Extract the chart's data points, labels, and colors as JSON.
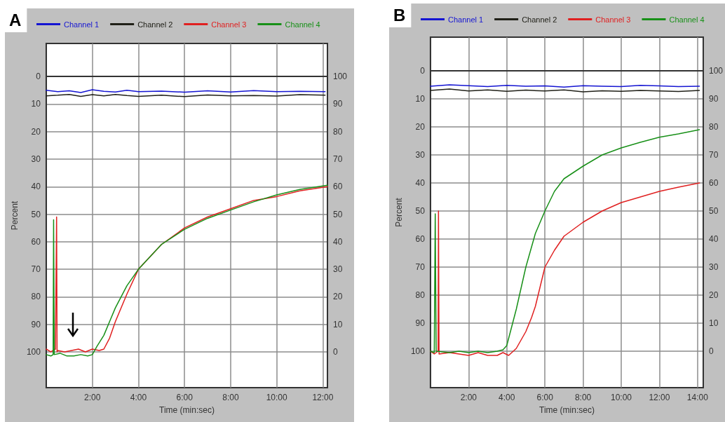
{
  "chart_data": [
    {
      "type": "line",
      "title": "A",
      "xlabel": "Time (min:sec)",
      "ylabel": "Percent",
      "legend": "top",
      "grid": true,
      "marker": "none",
      "line_style": "solid",
      "xlim": [
        0,
        12.2
      ],
      "xticks": [
        {
          "value": 2,
          "label": "2:00"
        },
        {
          "value": 4,
          "label": "4:00"
        },
        {
          "value": 6,
          "label": "6:00"
        },
        {
          "value": 8,
          "label": "8:00"
        },
        {
          "value": 10,
          "label": "10:00"
        },
        {
          "value": 12,
          "label": "12:00"
        }
      ],
      "ylim": [
        113,
        -12
      ],
      "yticks": [
        0,
        10,
        20,
        30,
        40,
        50,
        60,
        70,
        80,
        90,
        100
      ],
      "y2lim": [
        -13,
        112
      ],
      "y2ticks": [
        0,
        10,
        20,
        30,
        40,
        50,
        60,
        70,
        80,
        90,
        100
      ],
      "series": [
        {
          "name": "Channel 1",
          "color": "#1414d2",
          "x": [
            0,
            0.5,
            1,
            1.5,
            2,
            2.5,
            3,
            3.5,
            4,
            5,
            6,
            7,
            8,
            9,
            10,
            11,
            12.1
          ],
          "values": [
            5,
            5.5,
            5.2,
            5.8,
            4.8,
            5.4,
            5.6,
            5,
            5.5,
            5.3,
            5.7,
            5.2,
            5.6,
            5.1,
            5.5,
            5.4,
            5.5
          ]
        },
        {
          "name": "Channel 2",
          "color": "#202018",
          "x": [
            0,
            0.5,
            1,
            1.5,
            2,
            2.5,
            3,
            3.5,
            4,
            5,
            6,
            7,
            8,
            9,
            10,
            11,
            12.1
          ],
          "values": [
            7,
            6.8,
            6.5,
            7.2,
            6.6,
            7,
            6.5,
            6.9,
            7.2,
            6.8,
            7.3,
            6.7,
            7,
            6.9,
            7.1,
            6.6,
            6.8
          ]
        },
        {
          "name": "Channel 3",
          "color": "#e02020",
          "x": [
            0,
            0.2,
            0.4,
            0.45,
            0.47,
            0.5,
            0.8,
            1.1,
            1.4,
            1.7,
            2,
            2.3,
            2.5,
            2.75,
            3,
            3.5,
            4,
            5,
            6,
            7,
            8,
            9,
            10,
            11,
            12.2
          ],
          "values": [
            99,
            100,
            99,
            51,
            100,
            99.5,
            100,
            99.5,
            99,
            100,
            99,
            99.5,
            99,
            95,
            89,
            79,
            70,
            61,
            55,
            51,
            48,
            45,
            43.6,
            41.5,
            40
          ]
        },
        {
          "name": "Channel 4",
          "color": "#189018",
          "x": [
            0,
            0.2,
            0.3,
            0.32,
            0.35,
            0.6,
            0.9,
            1.2,
            1.5,
            1.8,
            2,
            2.2,
            2.5,
            2.8,
            3,
            3.5,
            4,
            5,
            6,
            7,
            8,
            9,
            10,
            11,
            12.2
          ],
          "values": [
            101,
            101.5,
            101,
            52,
            101,
            100.5,
            101.5,
            101.5,
            101,
            101.5,
            101,
            98,
            94,
            88,
            84,
            76,
            70,
            61,
            55.5,
            51.5,
            48.5,
            45.5,
            43,
            41,
            39.5
          ]
        }
      ]
    },
    {
      "type": "line",
      "title": "B",
      "xlabel": "Time (min:sec)",
      "ylabel": "Percent",
      "legend": "top",
      "grid": true,
      "marker": "none",
      "line_style": "solid",
      "xlim": [
        0,
        14.3
      ],
      "xticks": [
        {
          "value": 2,
          "label": "2:00"
        },
        {
          "value": 4,
          "label": "4:00"
        },
        {
          "value": 6,
          "label": "6:00"
        },
        {
          "value": 8,
          "label": "8:00"
        },
        {
          "value": 10,
          "label": "10:00"
        },
        {
          "value": 12,
          "label": "12:00"
        },
        {
          "value": 14,
          "label": "14:00"
        }
      ],
      "ylim": [
        113,
        -12
      ],
      "yticks": [
        0,
        10,
        20,
        30,
        40,
        50,
        60,
        70,
        80,
        90,
        100
      ],
      "y2lim": [
        -13,
        112
      ],
      "y2ticks": [
        0,
        10,
        20,
        30,
        40,
        50,
        60,
        70,
        80,
        90,
        100
      ],
      "series": [
        {
          "name": "Channel 1",
          "color": "#1414d2",
          "x": [
            0,
            1,
            2,
            3,
            4,
            5,
            6,
            7,
            8,
            9,
            10,
            11,
            12,
            13,
            14.1
          ],
          "values": [
            5.5,
            5,
            5.3,
            5.6,
            5.2,
            5.5,
            5.4,
            5.8,
            5.3,
            5.5,
            5.6,
            5.2,
            5.4,
            5.6,
            5.5
          ]
        },
        {
          "name": "Channel 2",
          "color": "#202018",
          "x": [
            0,
            1,
            2,
            3,
            4,
            5,
            6,
            7,
            8,
            9,
            10,
            11,
            12,
            13,
            14.1
          ],
          "values": [
            7,
            6.5,
            7.2,
            6.8,
            7.3,
            6.9,
            7.2,
            6.8,
            7.5,
            7.1,
            7.3,
            7,
            7.2,
            7.4,
            7
          ]
        },
        {
          "name": "Channel 3",
          "color": "#e02020",
          "x": [
            0,
            0.2,
            0.4,
            0.42,
            0.45,
            1,
            1.5,
            2,
            2.5,
            3,
            3.5,
            3.8,
            4.1,
            4.5,
            5,
            5.3,
            5.5,
            6,
            6.5,
            7,
            8,
            9,
            10,
            11,
            12,
            13,
            14.1
          ],
          "values": [
            100,
            101,
            100,
            50,
            101,
            100.5,
            101,
            101.5,
            100.5,
            101.5,
            101.5,
            100.5,
            101.5,
            99,
            93,
            88,
            84,
            70,
            64,
            59,
            54,
            50,
            47,
            45,
            43,
            41.5,
            40
          ]
        },
        {
          "name": "Channel 4",
          "color": "#189018",
          "x": [
            0,
            0.2,
            0.25,
            0.27,
            0.3,
            1,
            1.5,
            2,
            2.5,
            3,
            3.5,
            3.8,
            4,
            4.5,
            5,
            5.5,
            6,
            6.5,
            7,
            8,
            9,
            10,
            11,
            12,
            13,
            14.1
          ],
          "values": [
            100,
            100.5,
            51,
            72,
            100,
            100.5,
            100,
            100.5,
            100,
            100.5,
            100,
            99.5,
            98,
            85,
            70,
            58,
            50,
            43,
            38.5,
            34,
            30,
            27.5,
            25.5,
            23.7,
            22.5,
            21
          ]
        }
      ]
    }
  ]
}
